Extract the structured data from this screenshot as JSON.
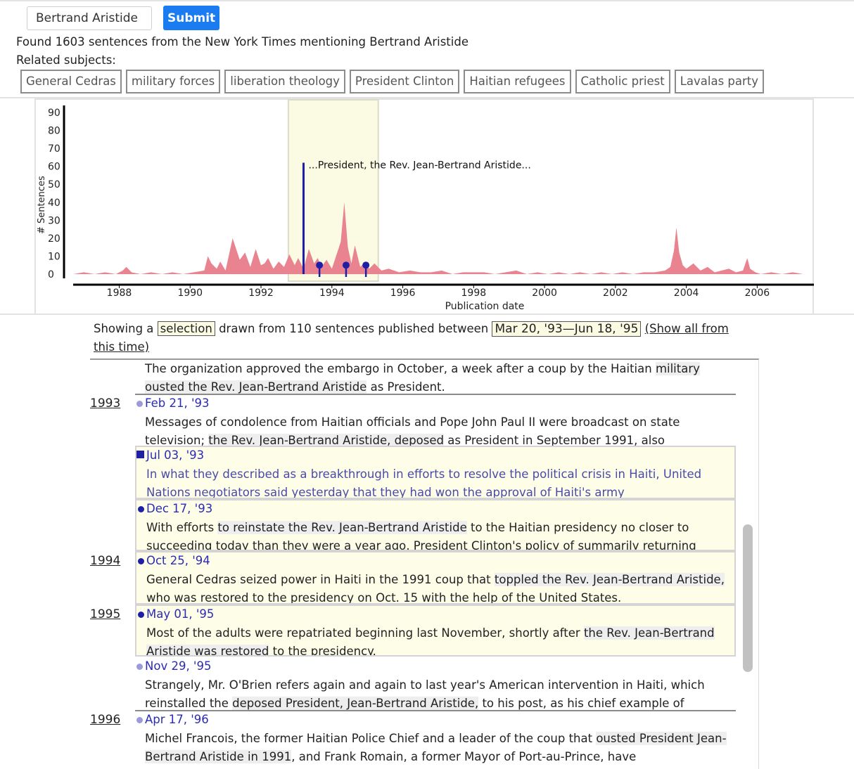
{
  "search": {
    "value": "Bertrand Aristide",
    "submit_label": "Submit"
  },
  "found_text": "Found 1603 sentences from the New York Times mentioning Bertrand Aristide",
  "related_label": "Related subjects:",
  "related_subjects": [
    "General Cedras",
    "military forces",
    "liberation theology",
    "President Clinton",
    "Haitian refugees",
    "Catholic priest",
    "Lavalas party"
  ],
  "chart_data": {
    "type": "area",
    "xlabel": "Publication date",
    "ylabel": "# Sentences",
    "xlim": [
      1986.7,
      2007.6
    ],
    "ylim": [
      0,
      90
    ],
    "yticks": [
      "0",
      "10",
      "20",
      "30",
      "40",
      "50",
      "60",
      "70",
      "80",
      "90"
    ],
    "xticks": [
      "1988",
      "1990",
      "1992",
      "1994",
      "1996",
      "1998",
      "2000",
      "2002",
      "2004",
      "2006"
    ],
    "x": [
      1986.7,
      1987.0,
      1987.3,
      1987.6,
      1987.9,
      1988.1,
      1988.2,
      1988.35,
      1988.6,
      1988.9,
      1989.2,
      1989.5,
      1989.8,
      1990.1,
      1990.4,
      1990.5,
      1990.6,
      1990.75,
      1990.85,
      1991.0,
      1991.2,
      1991.4,
      1991.55,
      1991.7,
      1991.85,
      1992.0,
      1992.1,
      1992.2,
      1992.35,
      1992.5,
      1992.65,
      1992.8,
      1992.95,
      1993.05,
      1993.2,
      1993.35,
      1993.5,
      1993.6,
      1993.7,
      1993.85,
      1994.0,
      1994.15,
      1994.25,
      1994.35,
      1994.45,
      1994.55,
      1994.65,
      1994.8,
      1994.95,
      1995.05,
      1995.2,
      1995.4,
      1995.6,
      1995.9,
      1996.2,
      1996.5,
      1996.8,
      1997.1,
      1997.4,
      1997.7,
      1998.0,
      1998.3,
      1998.6,
      1998.9,
      1999.2,
      1999.5,
      1999.8,
      2000.1,
      2000.4,
      2000.7,
      2001.0,
      2001.3,
      2001.6,
      2001.9,
      2002.2,
      2002.5,
      2002.8,
      2003.1,
      2003.4,
      2003.55,
      2003.65,
      2003.72,
      2003.8,
      2003.9,
      2004.0,
      2004.2,
      2004.4,
      2004.6,
      2004.8,
      2005.0,
      2005.2,
      2005.4,
      2005.6,
      2005.72,
      2005.8,
      2005.95,
      2006.1,
      2006.4,
      2006.7,
      2007.0,
      2007.3,
      2007.6
    ],
    "y": [
      0,
      1,
      0,
      1,
      0,
      2,
      4,
      1,
      0,
      1,
      0,
      1,
      0,
      1,
      2,
      10,
      6,
      3,
      7,
      2,
      20,
      8,
      12,
      4,
      14,
      5,
      6,
      9,
      3,
      7,
      4,
      11,
      5,
      9,
      3,
      14,
      6,
      9,
      4,
      8,
      3,
      12,
      18,
      40,
      15,
      6,
      16,
      4,
      7,
      3,
      6,
      2,
      3,
      1,
      2,
      1,
      1,
      2,
      0,
      1,
      1,
      1,
      0,
      1,
      2,
      0,
      1,
      0,
      1,
      0,
      1,
      0,
      1,
      0,
      1,
      0,
      1,
      1,
      2,
      4,
      13,
      26,
      12,
      5,
      3,
      6,
      2,
      4,
      1,
      2,
      3,
      1,
      2,
      9,
      3,
      1,
      0,
      1,
      0,
      1,
      0,
      0
    ],
    "selection_range": [
      "Mar 20, '93",
      "Jun 18, '95"
    ],
    "annotation": "...President, the Rev. Jean-Bertrand Aristide...",
    "markers": [
      1993.2,
      1993.65,
      1994.4,
      1994.96
    ],
    "colors": {
      "area": "#e8838f",
      "marker": "#1f1fa6",
      "selection": "#fbfbe3",
      "axis": "#000000"
    }
  },
  "showing": {
    "prefix": "Showing a",
    "selection_label": "selection",
    "middle": "drawn from 110 sentences published between",
    "range_label": "Mar 20, '93—Jun 18, '95",
    "show_all_label": "(Show all from this time)"
  },
  "years": [
    {
      "label": "1993"
    },
    {
      "label": "1994"
    },
    {
      "label": "1995"
    },
    {
      "label": "1996"
    }
  ],
  "entries": [
    {
      "date": "",
      "text_a": "The organization approved the embargo in October, a week after a coup by the Haitian ",
      "mark": "military ousted the Rev. Jean-Bertrand Aristide",
      "text_b": " as President."
    },
    {
      "date": "Feb 21, '93",
      "text_a": "Messages of condolence from Haitian officials and Pope John Paul II were broadcast on state television; ",
      "mark": "the Rev. Jean-Bertrand Aristide, deposed",
      "text_b": " as President in September 1991, also"
    },
    {
      "date": "Jul 03, '93",
      "text_a": "In what they described as a breakthrough in efforts to resolve the political crisis in Haiti, United Nations negotiators said yesterday that they had won the approval of Haiti's army",
      "mark": "",
      "text_b": ""
    },
    {
      "date": "Dec 17, '93",
      "text_a": "With efforts ",
      "mark": "to reinstate the Rev. Jean-Bertrand Aristide",
      "text_b": " to the Haitian presidency no closer to succeeding today than they were a year ago, President Clinton's policy of summarily returning"
    },
    {
      "date": "Oct 25, '94",
      "text_a": "General Cedras seized power in Haiti in the 1991 coup that ",
      "mark": "toppled the Rev. Jean-Bertrand Aristide,",
      "text_b": " who was restored to the presidency on Oct. 15 with the help of the United States."
    },
    {
      "date": "May 01, '95",
      "text_a": "Most of the adults were repatriated beginning last November, shortly after ",
      "mark": "the Rev. Jean-Bertrand Aristide was restored",
      "text_b": " to the presidency."
    },
    {
      "date": "Nov 29, '95",
      "text_a": "Strangely, Mr. O'Brien refers again and again to last year's American intervention in Haiti, which reinstalled the ",
      "mark": "deposed President, Jean-Bertrand Aristide,",
      "text_b": " to his post, as his chief example of"
    },
    {
      "date": "Apr 17, '96",
      "text_a": "Michel Francois, the former Haitian Police Chief and a leader of the coup that ",
      "mark": "ousted President Jean-Bertrand Aristide in 1991",
      "text_b": ", and Frank Romain, a former Mayor of Port-au-Prince, have"
    }
  ]
}
